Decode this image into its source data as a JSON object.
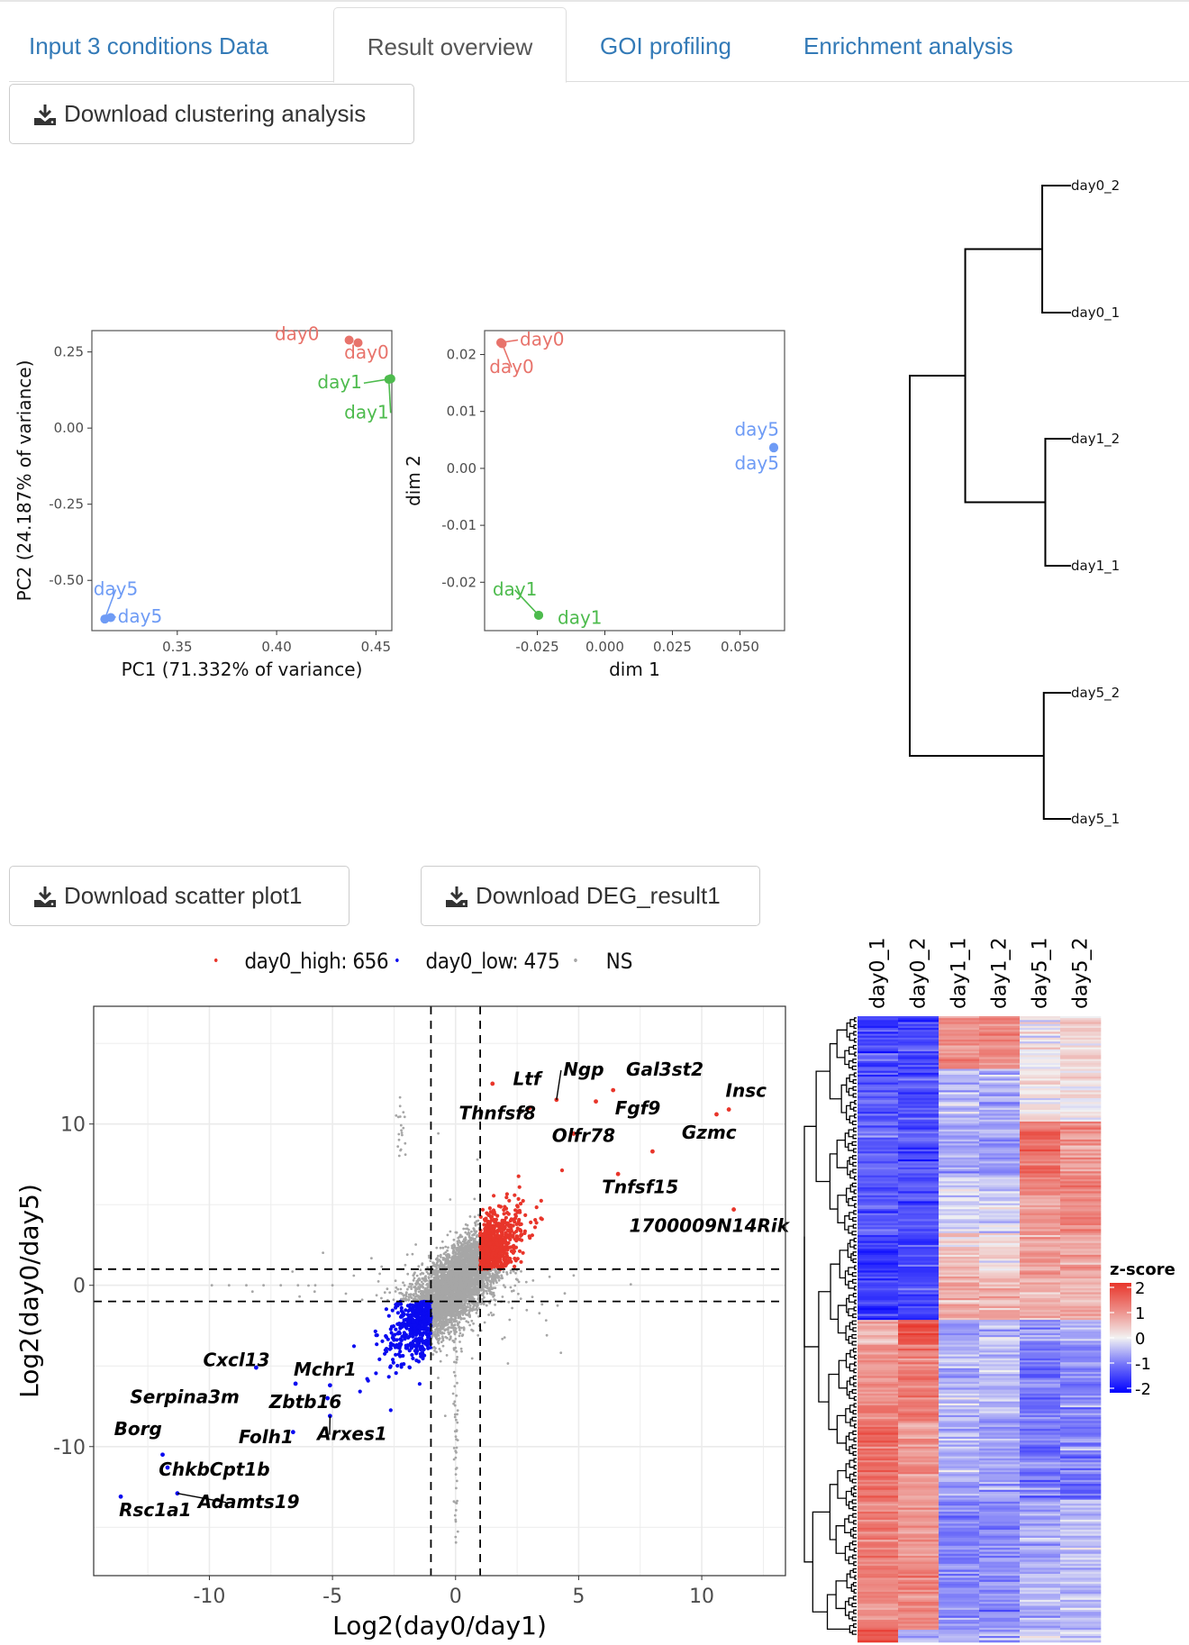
{
  "tabs": [
    {
      "label": "Input 3 conditions Data",
      "active": false
    },
    {
      "label": "Result overview",
      "active": true
    },
    {
      "label": "GOI profiling",
      "active": false
    },
    {
      "label": "Enrichment analysis",
      "active": false
    }
  ],
  "buttons": {
    "download_clustering": "Download clustering analysis",
    "download_scatter": "Download scatter plot1",
    "download_deg": "Download DEG_result1"
  },
  "icons": {
    "download": "download-icon"
  },
  "colors": {
    "day0": "#E8736B",
    "day1": "#4DBB4D",
    "day5": "#6E9BF5",
    "high": "#E8352A",
    "low": "#0A0AF0",
    "ns": "#A6A6A6",
    "tab_link": "#337ab7"
  },
  "chart_data": [
    {
      "id": "pca",
      "type": "scatter",
      "title": "",
      "xlabel": "PC1 (71.332% of variance)",
      "ylabel": "PC2 (24.187% of variance)",
      "xlim": [
        0.307,
        0.458
      ],
      "ylim": [
        -0.665,
        0.32
      ],
      "xticks": [
        0.35,
        0.4,
        0.45
      ],
      "xtick_labels": [
        "0.35",
        "0.40",
        "0.45"
      ],
      "yticks": [
        0.25,
        0.0,
        -0.25,
        -0.5
      ],
      "ytick_labels": [
        "0.25",
        "0.00",
        "-0.25",
        "-0.50"
      ],
      "grid": false,
      "points": [
        {
          "label": "day0",
          "group": "day0",
          "x": 0.4365,
          "y": 0.289,
          "label_x": 0.4215,
          "label_y": 0.289,
          "anchor": "end"
        },
        {
          "label": "day0",
          "group": "day0",
          "x": 0.441,
          "y": 0.28,
          "label_x": 0.4565,
          "label_y": 0.228,
          "anchor": "end"
        },
        {
          "label": "day1",
          "group": "day1",
          "x": 0.4575,
          "y": 0.162,
          "label_x": 0.443,
          "label_y": 0.13,
          "anchor": "end",
          "leader": true
        },
        {
          "label": "day1",
          "group": "day1",
          "x": 0.4565,
          "y": 0.16,
          "label_x": 0.4565,
          "label_y": 0.032,
          "anchor": "end",
          "leader": true
        },
        {
          "label": "day5",
          "group": "day5",
          "x": 0.3135,
          "y": -0.627,
          "label_x": 0.319,
          "label_y": -0.548,
          "anchor": "middle",
          "leader": true
        },
        {
          "label": "day5",
          "group": "day5",
          "x": 0.3165,
          "y": -0.622,
          "label_x": 0.32,
          "label_y": -0.638,
          "anchor": "start",
          "leader": true
        }
      ]
    },
    {
      "id": "mds",
      "type": "scatter",
      "title": "",
      "xlabel": "dim 1",
      "ylabel": "dim 2",
      "xlim": [
        -0.0445,
        0.0665
      ],
      "ylim": [
        -0.0285,
        0.0242
      ],
      "xticks": [
        -0.025,
        0.0,
        0.025,
        0.05
      ],
      "xtick_labels": [
        "-0.025",
        "0.000",
        "0.025",
        "0.050"
      ],
      "yticks": [
        0.02,
        0.01,
        0.0,
        -0.01,
        -0.02
      ],
      "ytick_labels": [
        "0.02",
        "0.01",
        "0.00",
        "-0.01",
        "-0.02"
      ],
      "grid": false,
      "points": [
        {
          "label": "day0",
          "group": "day0",
          "x": -0.0385,
          "y": 0.0221,
          "label_x": -0.0315,
          "label_y": 0.0216,
          "anchor": "start",
          "leader": true
        },
        {
          "label": "day0",
          "group": "day0",
          "x": -0.038,
          "y": 0.0219,
          "label_x": -0.0345,
          "label_y": 0.0168,
          "anchor": "middle",
          "leader": true
        },
        {
          "label": "day1",
          "group": "day1",
          "x": -0.0245,
          "y": -0.0258,
          "label_x": -0.0333,
          "label_y": -0.0223,
          "anchor": "middle",
          "leader": true
        },
        {
          "label": "day1",
          "group": "day1",
          "x": -0.0245,
          "y": -0.0258,
          "label_x": -0.0175,
          "label_y": -0.0273,
          "anchor": "start"
        },
        {
          "label": "day5",
          "group": "day5",
          "x": 0.0625,
          "y": 0.0037,
          "label_x": 0.0645,
          "label_y": 0.0058,
          "anchor": "end"
        },
        {
          "label": "day5",
          "group": "day5",
          "x": 0.0625,
          "y": 0.0036,
          "label_x": 0.0645,
          "label_y": -0.0002,
          "anchor": "end"
        }
      ]
    },
    {
      "id": "dendrogram",
      "type": "dendrogram",
      "leaves": [
        "day0_2",
        "day0_1",
        "day1_2",
        "day1_1",
        "day5_2",
        "day5_1"
      ],
      "merges": [
        {
          "a": "day0_2",
          "b": "day0_1",
          "height": 0.14
        },
        {
          "a": "day1_2",
          "b": "day1_1",
          "height": 0.12
        },
        {
          "a": "day5_2",
          "b": "day5_1",
          "height": 0.13
        },
        {
          "a": "day0",
          "b": "day1",
          "height": 0.64
        },
        {
          "a": "day0day1",
          "b": "day5",
          "height": 1.0
        }
      ]
    },
    {
      "id": "deg-scatter",
      "type": "scatter",
      "xlabel": "Log2(day0/day1)",
      "ylabel": "Log2(day0/day5)",
      "xlim": [
        -14.7,
        13.4
      ],
      "ylim": [
        -18.0,
        17.3
      ],
      "xticks": [
        -10,
        -5,
        0,
        5,
        10
      ],
      "xtick_labels": [
        "-10",
        "-5",
        "0",
        "5",
        "10"
      ],
      "yticks": [
        10,
        0,
        -10
      ],
      "ytick_labels": [
        "10",
        "0",
        "-10"
      ],
      "grid": true,
      "thresholds": {
        "x": [
          -1,
          1
        ],
        "y": [
          -1,
          1
        ]
      },
      "legend": {
        "position": "top",
        "entries": [
          {
            "label": "day0_high: 656",
            "group": "high"
          },
          {
            "label": "day0_low: 475",
            "group": "low"
          },
          {
            "label": "NS",
            "group": "ns"
          }
        ]
      },
      "counts": {
        "high": 656,
        "low": 475
      },
      "labeled_genes": [
        {
          "gene": "Ltf",
          "x": 1.5,
          "y": 12.5,
          "label_x": 2.9,
          "label_y": 12.4
        },
        {
          "gene": "Ngp",
          "x": 4.1,
          "y": 11.5,
          "label_x": 5.2,
          "label_y": 13.0,
          "leader": true
        },
        {
          "gene": "Gal3st2",
          "x": 6.4,
          "y": 12.1,
          "label_x": 8.5,
          "label_y": 13.0
        },
        {
          "gene": "Thnfsf8",
          "x": 3.0,
          "y": 11.0,
          "label_x": 1.7,
          "label_y": 10.3,
          "leader": true
        },
        {
          "gene": "Fgf9",
          "x": 5.7,
          "y": 11.4,
          "label_x": 7.4,
          "label_y": 10.6
        },
        {
          "gene": "Insc",
          "x": 11.1,
          "y": 10.9,
          "label_x": 11.8,
          "label_y": 11.7
        },
        {
          "gene": "Insc_2",
          "x": 10.6,
          "y": 10.6
        },
        {
          "gene": "Olfr78",
          "x": 4.8,
          "y": 9.4,
          "label_x": 5.2,
          "label_y": 8.9
        },
        {
          "gene": "Gzmc",
          "x": 8.0,
          "y": 8.3,
          "label_x": 10.3,
          "label_y": 9.1
        },
        {
          "gene": "Tnfsf15",
          "x": 6.6,
          "y": 6.9,
          "label_x": 7.5,
          "label_y": 5.7
        },
        {
          "gene": "1700009N14Rik",
          "x": 11.3,
          "y": 4.7,
          "label_x": 10.3,
          "label_y": 3.3
        },
        {
          "gene": "Cxcl13",
          "x": -8.1,
          "y": -5.1,
          "label_x": -8.9,
          "label_y": -5.0
        },
        {
          "gene": "Mchr1",
          "x": -5.1,
          "y": -6.2,
          "label_x": -5.3,
          "label_y": -5.6
        },
        {
          "gene": "Serpina3m",
          "x": -6.5,
          "y": -6.1,
          "label_x": -11.0,
          "label_y": -7.3
        },
        {
          "gene": "Zbtb16",
          "x": -5.2,
          "y": -7.0,
          "label_x": -6.1,
          "label_y": -7.6
        },
        {
          "gene": "Arxes1",
          "x": -5.1,
          "y": -8.1,
          "label_x": -4.2,
          "label_y": -9.6,
          "leader": true
        },
        {
          "gene": "Folh1",
          "x": -6.6,
          "y": -9.1,
          "label_x": -7.7,
          "label_y": -9.8
        },
        {
          "gene": "Borg",
          "x": -11.9,
          "y": -10.5,
          "label_x": -12.9,
          "label_y": -9.3
        },
        {
          "gene": "ChkbCpt1b",
          "x": -11.7,
          "y": -11.3,
          "label_x": -9.8,
          "label_y": -11.8
        },
        {
          "gene": "Adamts19",
          "x": -11.3,
          "y": -12.9,
          "label_x": -8.4,
          "label_y": -13.8,
          "leader": true
        },
        {
          "gene": "Rsc1a1",
          "x": -13.6,
          "y": -13.1,
          "label_x": -12.2,
          "label_y": -14.3
        }
      ]
    },
    {
      "id": "heatmap",
      "type": "heatmap",
      "columns": [
        "day0_1",
        "day0_2",
        "day1_1",
        "day1_2",
        "day5_1",
        "day5_2"
      ],
      "legend_title": "z-score",
      "legend_ticks": [
        2,
        1,
        0,
        -1,
        -2
      ],
      "color_scale": {
        "min": -2,
        "mid": 0,
        "max": 2,
        "low_color": "#0000FF",
        "mid_color": "#F2F2F2",
        "high_color": "#E8352A"
      },
      "row_blocks": [
        {
          "fraction": 0.085,
          "values": [
            -1.3,
            -1.4,
            1.0,
            1.0,
            0.0,
            0.2
          ]
        },
        {
          "fraction": 0.085,
          "values": [
            -1.2,
            -1.3,
            -0.4,
            -0.5,
            0.1,
            0.1
          ]
        },
        {
          "fraction": 0.09,
          "values": [
            -1.1,
            -1.2,
            -0.6,
            -0.6,
            1.3,
            0.9
          ]
        },
        {
          "fraction": 0.09,
          "values": [
            -1.2,
            -1.2,
            -0.2,
            -0.2,
            0.9,
            1.1
          ]
        },
        {
          "fraction": 0.07,
          "values": [
            -1.5,
            -1.4,
            0.4,
            0.2,
            0.8,
            0.7
          ]
        },
        {
          "fraction": 0.07,
          "values": [
            -1.5,
            -1.4,
            0.7,
            0.6,
            0.6,
            0.7
          ]
        },
        {
          "fraction": 0.04,
          "values": [
            0.7,
            1.6,
            -0.6,
            -0.5,
            -0.7,
            -0.6
          ]
        },
        {
          "fraction": 0.12,
          "values": [
            1.0,
            1.2,
            -0.4,
            -0.3,
            -1.0,
            -0.8
          ]
        },
        {
          "fraction": 0.13,
          "values": [
            1.3,
            0.9,
            -0.5,
            -0.6,
            -0.9,
            -0.9
          ]
        },
        {
          "fraction": 0.11,
          "values": [
            1.2,
            0.9,
            -0.8,
            -0.8,
            -0.5,
            -0.4
          ]
        },
        {
          "fraction": 0.1,
          "values": [
            1.1,
            1.0,
            -0.8,
            -0.7,
            -0.5,
            -0.4
          ]
        },
        {
          "fraction": 0.02,
          "values": [
            1.8,
            -0.3,
            -0.5,
            -0.6,
            -0.1,
            -0.4
          ]
        }
      ]
    }
  ]
}
